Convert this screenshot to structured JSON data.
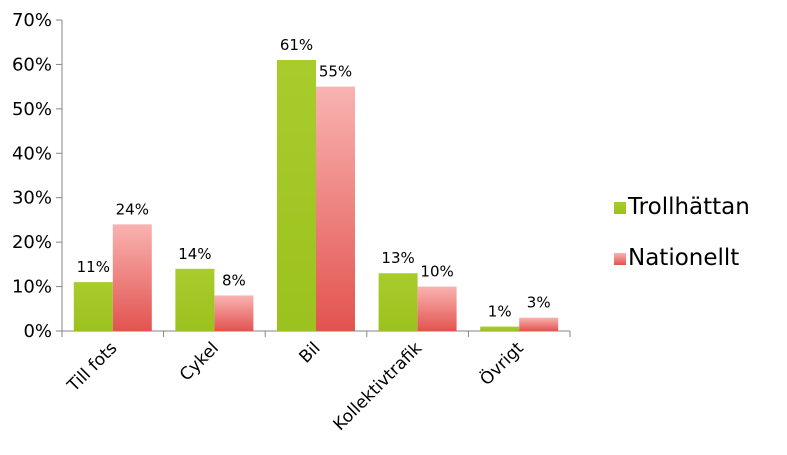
{
  "chart_data": {
    "type": "bar",
    "categories": [
      "Till fots",
      "Cykel",
      "Bil",
      "Kollektivtrafik",
      "Övrigt"
    ],
    "series": [
      {
        "name": "Trollhättan",
        "values": [
          11,
          14,
          61,
          13,
          1
        ],
        "labels": [
          "11%",
          "14%",
          "61%",
          "13%",
          "1%"
        ],
        "color": "#a3c628"
      },
      {
        "name": "Nationellt",
        "values": [
          24,
          8,
          55,
          10,
          3
        ],
        "labels": [
          "24%",
          "8%",
          "55%",
          "10%",
          "3%"
        ],
        "color": "#f08a8a"
      }
    ],
    "yticks": [
      "0%",
      "10%",
      "20%",
      "30%",
      "40%",
      "50%",
      "60%",
      "70%"
    ],
    "ylim": [
      0,
      70
    ],
    "xlabel": "",
    "ylabel": "",
    "legend_position": "right",
    "grid": false
  }
}
